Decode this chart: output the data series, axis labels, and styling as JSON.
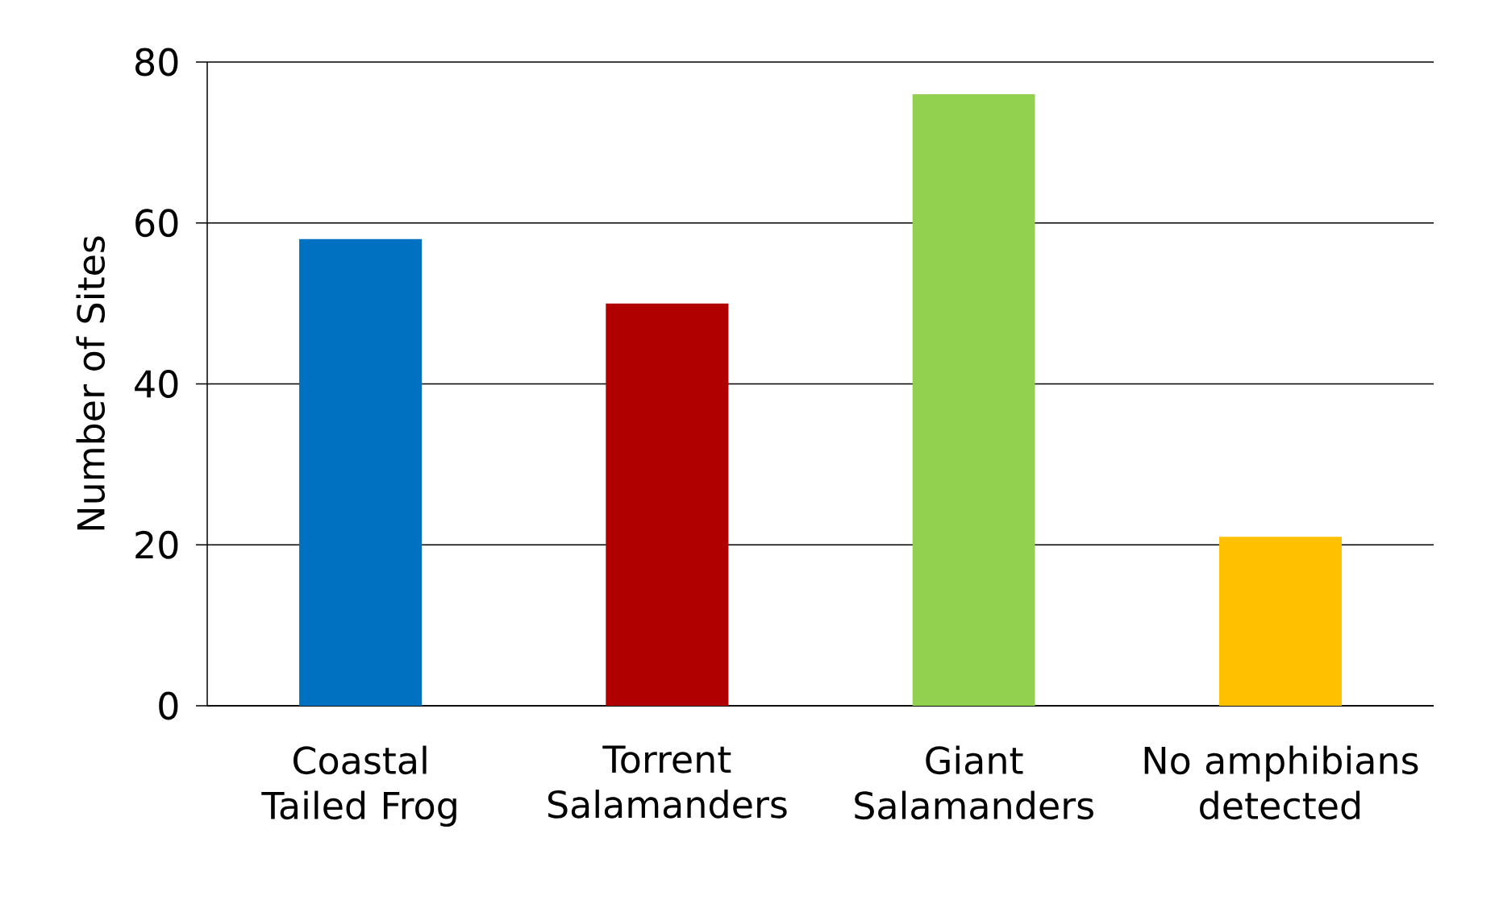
{
  "chart_data": {
    "type": "bar",
    "ylabel": "Number of Sites",
    "categories": [
      "Coastal Tailed Frog",
      "Torrent Salamanders",
      "Giant Salamanders",
      "No amphibians detected"
    ],
    "values": [
      58,
      50,
      76,
      21
    ],
    "colors": [
      "#0070c0",
      "#b00000",
      "#92d050",
      "#ffc000"
    ],
    "ylim": [
      0,
      80
    ],
    "yticks": [
      0,
      20,
      40,
      60,
      80
    ],
    "grid": "y"
  }
}
